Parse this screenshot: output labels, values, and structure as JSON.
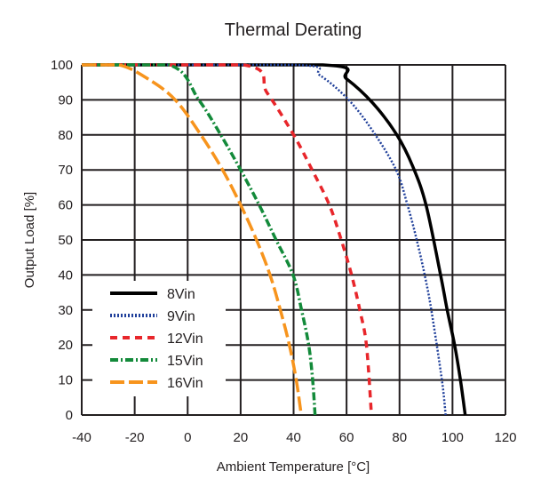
{
  "chart_data": {
    "type": "line",
    "title": "Thermal Derating",
    "xlabel": "Ambient Temperature [°C]",
    "ylabel": "Output Load [%]",
    "xlim": [
      -40,
      120
    ],
    "ylim": [
      0,
      100
    ],
    "xticks": [
      -40,
      -20,
      0,
      20,
      40,
      60,
      80,
      100,
      120
    ],
    "yticks": [
      0,
      10,
      20,
      30,
      40,
      50,
      60,
      70,
      80,
      90,
      100
    ],
    "grid": true,
    "legend_position": "bottom-left",
    "series": [
      {
        "name": "8Vin",
        "color": "#000000",
        "style": "solid",
        "x": [
          -40,
          51,
          60,
          70,
          79,
          85,
          90,
          95.5,
          98,
          100.8,
          103,
          104.8
        ],
        "y": [
          100,
          100,
          96,
          89,
          80,
          71,
          60,
          40,
          30,
          20,
          10,
          0
        ]
      },
      {
        "name": "9Vin",
        "color": "#1f3f9a",
        "style": "dotted",
        "x": [
          -40,
          41,
          50,
          60.8,
          70,
          78.7,
          83,
          86.5,
          89.5,
          92,
          96,
          97.4
        ],
        "y": [
          100,
          100,
          97,
          90,
          81,
          70,
          60,
          50,
          40,
          30,
          10,
          0
        ]
      },
      {
        "name": "12Vin",
        "color": "#e8262b",
        "style": "dashed",
        "x": [
          -40,
          21,
          30,
          40,
          47,
          53.5,
          58,
          61.9,
          65,
          67.5,
          69.4
        ],
        "y": [
          100,
          100,
          92,
          80,
          70,
          60,
          50,
          40,
          30,
          20,
          0
        ]
      },
      {
        "name": "15Vin",
        "color": "#138a3a",
        "style": "dashdot",
        "x": [
          -40,
          -7,
          4.2,
          12.5,
          20,
          27,
          33.4,
          39.8,
          43,
          45.7,
          47.2,
          48.1
        ],
        "y": [
          100,
          100,
          90,
          80,
          70,
          60,
          50,
          40,
          30,
          20,
          10,
          0
        ]
      },
      {
        "name": "16Vin",
        "color": "#f7941d",
        "style": "longdash",
        "x": [
          -40,
          -26,
          -15,
          -4.7,
          5,
          13.2,
          20,
          26,
          31.1,
          35,
          38.4,
          41,
          42.9
        ],
        "y": [
          100,
          100,
          96,
          90,
          80,
          70,
          60,
          50,
          40,
          30,
          20,
          10,
          0
        ]
      }
    ]
  }
}
